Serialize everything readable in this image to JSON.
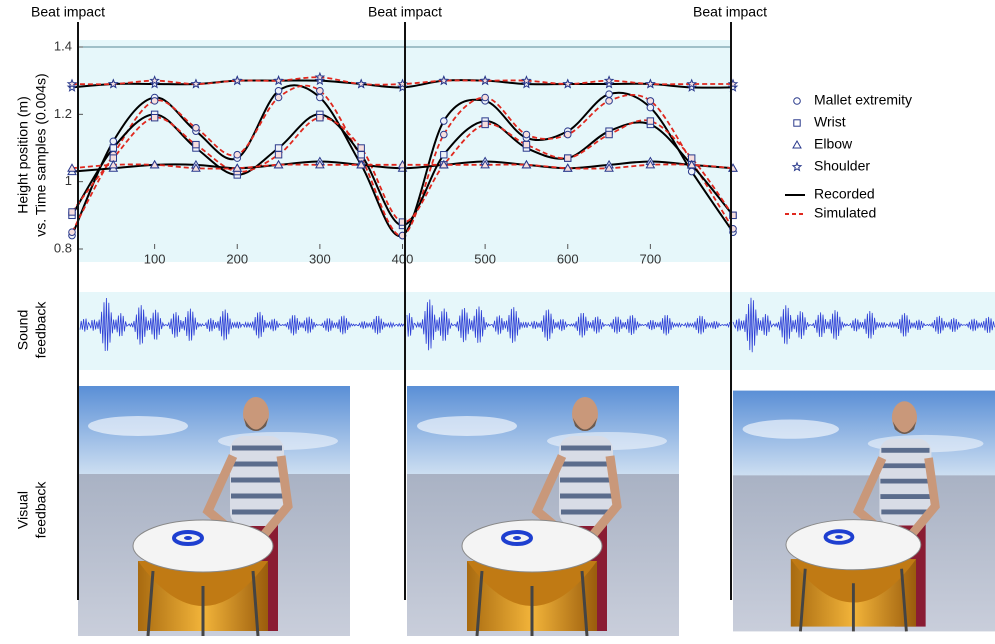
{
  "beat_labels": [
    "Beat impact",
    "Beat impact",
    "Beat impact"
  ],
  "row_labels": {
    "sound": [
      "Sound",
      "feedback"
    ],
    "visual": [
      "Visual",
      "feedback"
    ]
  },
  "chart_data": {
    "type": "line",
    "y_label_lines": [
      "Height position (m)",
      "vs. Time samples (0.004s)"
    ],
    "x": [
      0,
      50,
      100,
      150,
      200,
      250,
      300,
      350,
      400,
      450,
      500,
      550,
      600,
      650,
      700,
      750,
      800
    ],
    "xlim": [
      0,
      800
    ],
    "ylim": [
      0.8,
      1.4
    ],
    "xticks": [
      100,
      200,
      300,
      400,
      500,
      600,
      700
    ],
    "yticks": [
      0.8,
      1,
      1.2,
      1.4
    ],
    "marker_color": "#2a3a8c",
    "line_styles": [
      {
        "name": "Recorded",
        "color": "#000000",
        "dash": false
      },
      {
        "name": "Simulated",
        "color": "#e0281e",
        "dash": true
      }
    ],
    "series": [
      {
        "name": "Mallet extremity",
        "symbol": "circle",
        "recorded": [
          0.84,
          1.12,
          1.25,
          1.15,
          1.07,
          1.27,
          1.25,
          1.05,
          0.84,
          1.18,
          1.24,
          1.13,
          1.15,
          1.26,
          1.22,
          1.03,
          0.85
        ],
        "simulated": [
          0.85,
          1.08,
          1.24,
          1.16,
          1.08,
          1.25,
          1.27,
          1.07,
          0.84,
          1.14,
          1.25,
          1.14,
          1.14,
          1.24,
          1.24,
          1.06,
          0.86
        ]
      },
      {
        "name": "Wrist",
        "symbol": "square",
        "recorded": [
          0.9,
          1.1,
          1.2,
          1.1,
          1.02,
          1.1,
          1.2,
          1.08,
          0.87,
          1.08,
          1.18,
          1.1,
          1.07,
          1.15,
          1.17,
          1.05,
          0.9
        ],
        "simulated": [
          0.91,
          1.07,
          1.19,
          1.11,
          1.03,
          1.08,
          1.19,
          1.1,
          0.88,
          1.05,
          1.17,
          1.11,
          1.07,
          1.14,
          1.18,
          1.07,
          0.9
        ]
      },
      {
        "name": "Elbow",
        "symbol": "triangle",
        "recorded": [
          1.03,
          1.04,
          1.05,
          1.05,
          1.04,
          1.05,
          1.06,
          1.05,
          1.04,
          1.05,
          1.06,
          1.05,
          1.04,
          1.05,
          1.06,
          1.05,
          1.04
        ],
        "simulated": [
          1.04,
          1.05,
          1.05,
          1.04,
          1.04,
          1.05,
          1.05,
          1.05,
          1.05,
          1.05,
          1.05,
          1.05,
          1.04,
          1.04,
          1.05,
          1.05,
          1.04
        ]
      },
      {
        "name": "Shoulder",
        "symbol": "star",
        "recorded": [
          1.28,
          1.29,
          1.29,
          1.29,
          1.3,
          1.3,
          1.3,
          1.29,
          1.28,
          1.3,
          1.3,
          1.29,
          1.29,
          1.29,
          1.29,
          1.28,
          1.28
        ],
        "simulated": [
          1.29,
          1.29,
          1.3,
          1.29,
          1.3,
          1.3,
          1.31,
          1.29,
          1.29,
          1.3,
          1.3,
          1.3,
          1.29,
          1.3,
          1.29,
          1.29,
          1.29
        ]
      }
    ]
  }
}
